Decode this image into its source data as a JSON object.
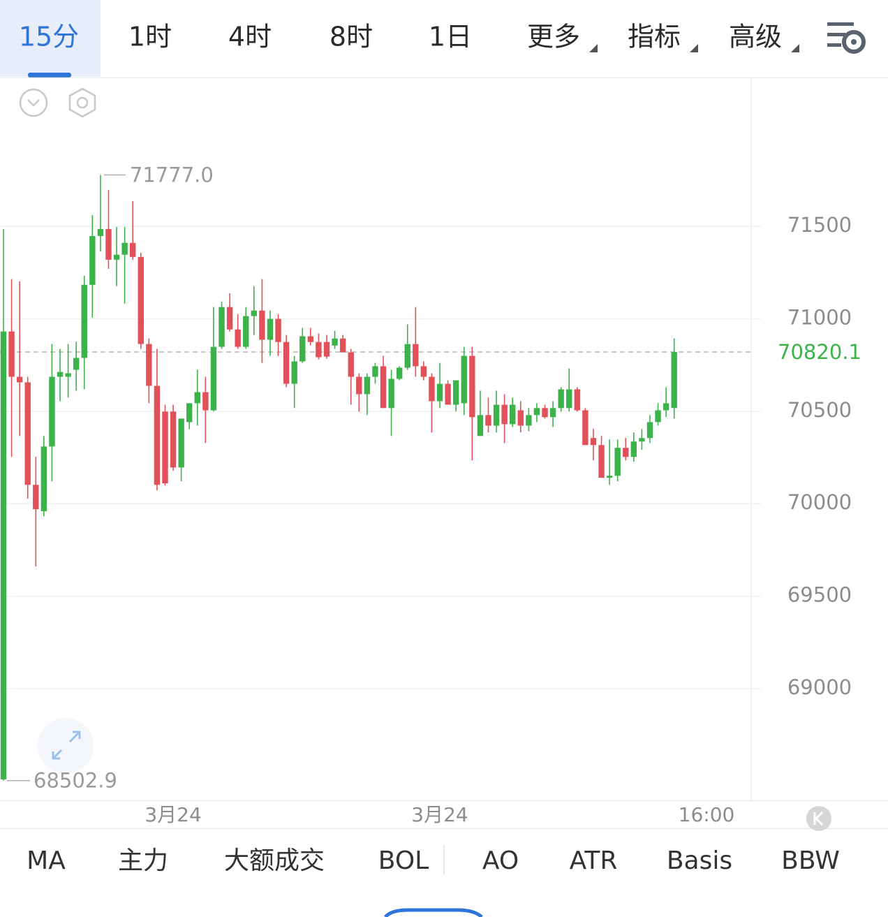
{
  "tabs": [
    "15分",
    "1时",
    "4时",
    "8时",
    "1日",
    "更多",
    "指标",
    "高级"
  ],
  "indicators": [
    "MA",
    "主力",
    "大额成交",
    "BOL",
    "AO",
    "ATR",
    "Basis",
    "BBW"
  ],
  "chart_data": {
    "type": "candlestick",
    "categories": [
      null,
      null,
      null,
      null,
      null,
      null,
      null,
      null,
      null,
      null,
      null,
      null,
      null,
      null,
      null,
      null,
      null,
      null,
      null,
      null,
      null,
      "3月24",
      null,
      null,
      null,
      null,
      null,
      null,
      null,
      null,
      null,
      null,
      null,
      null,
      null,
      null,
      null,
      null,
      null,
      null,
      null,
      null,
      null,
      null,
      null,
      null,
      null,
      null,
      null,
      null,
      null,
      null,
      null,
      null,
      "3月24",
      null,
      null,
      null,
      null,
      null,
      null,
      null,
      null,
      null,
      null,
      null,
      null,
      null,
      null,
      null,
      null,
      null,
      null,
      null,
      null,
      null,
      null,
      null,
      null,
      null,
      null,
      null,
      null,
      null,
      null,
      null,
      null,
      "16:00"
    ],
    "open": [
      68510,
      70931,
      70686,
      70656,
      70102,
      69959,
      70309,
      70686,
      70686,
      70724,
      70788,
      71183,
      71447,
      71485,
      71319,
      71346,
      71410,
      71334,
      70863,
      70637,
      70498,
      70498,
      70196,
      70441,
      70543,
      70603,
      70505,
      70848,
      71063,
      70942,
      70848,
      71014,
      71044,
      70886,
      70999,
      70874,
      70648,
      70769,
      70905,
      70874,
      70874,
      70855,
      70893,
      70818,
      70686,
      70592,
      70686,
      70743,
      70517,
      70675,
      70735,
      70863,
      70743,
      70686,
      70554,
      70648,
      70535,
      70543,
      70799,
      70366,
      70479,
      70422,
      70535,
      70430,
      70505,
      70422,
      70479,
      70517,
      70468,
      70517,
      70517,
      70618,
      70505,
      70355,
      70317,
      70140,
      70151,
      70302,
      70253,
      70336,
      70355,
      70441,
      70505,
      70517,
      null,
      null,
      null,
      null
    ],
    "high": [
      71485,
      71214,
      71202,
      70686,
      70253,
      70366,
      70863,
      70837,
      70863,
      70875,
      71232,
      71560,
      71777,
      71696,
      71496,
      71496,
      71636,
      71357,
      70893,
      70837,
      70535,
      70535,
      70460,
      70543,
      70724,
      70686,
      71063,
      71093,
      71138,
      71025,
      71063,
      71176,
      71214,
      71044,
      71025,
      70912,
      70799,
      70950,
      70950,
      70920,
      70912,
      70935,
      70912,
      70837,
      70705,
      70705,
      70761,
      70799,
      70724,
      70743,
      70969,
      71063,
      70769,
      70705,
      70761,
      70667,
      70667,
      70848,
      70848,
      70611,
      70573,
      70611,
      70592,
      70573,
      70554,
      70517,
      70543,
      70535,
      70554,
      70630,
      70731,
      70630,
      70517,
      70404,
      70366,
      70347,
      70347,
      70355,
      70385,
      70404,
      70479,
      70543,
      70630,
      70893,
      null,
      null,
      null,
      null
    ],
    "low": [
      68502.9,
      70253,
      70366,
      70027,
      69661,
      69932,
      70121,
      70554,
      70573,
      70611,
      70618,
      71006,
      71364,
      71270,
      71176,
      71082,
      71319,
      70837,
      70543,
      70072,
      70098,
      70178,
      70121,
      70403,
      70422,
      70328,
      70498,
      70837,
      70931,
      70837,
      70837,
      70912,
      70761,
      70799,
      70799,
      70630,
      70517,
      70761,
      70856,
      70780,
      70784,
      70837,
      70818,
      70535,
      70498,
      70479,
      70648,
      70517,
      70366,
      70667,
      70724,
      70686,
      70667,
      70385,
      70517,
      70535,
      70498,
      70479,
      70234,
      70366,
      70385,
      70385,
      70328,
      70415,
      70385,
      70392,
      70441,
      70460,
      70415,
      70498,
      70498,
      70498,
      70317,
      70234,
      70140,
      70102,
      70121,
      70234,
      70227,
      70291,
      70328,
      70422,
      70468,
      70460,
      null,
      null,
      null,
      null
    ],
    "close": [
      70931,
      70686,
      70656,
      70102,
      69970,
      70309,
      70686,
      70712,
      70705,
      70788,
      71183,
      71447,
      71485,
      71319,
      71346,
      71410,
      71334,
      70863,
      70637,
      70102,
      70110,
      70196,
      70460,
      70543,
      70603,
      70505,
      70848,
      71063,
      70942,
      70848,
      71014,
      71044,
      70886,
      70999,
      70874,
      70648,
      70769,
      70905,
      70874,
      70792,
      70795,
      70893,
      70818,
      70686,
      70592,
      70686,
      70743,
      70517,
      70675,
      70735,
      70863,
      70743,
      70686,
      70554,
      70648,
      70535,
      70667,
      70799,
      70468,
      70479,
      70422,
      70535,
      70430,
      70535,
      70422,
      70479,
      70517,
      70468,
      70517,
      70618,
      70618,
      70505,
      70317,
      70317,
      70140,
      70151,
      70302,
      70253,
      70336,
      70355,
      70441,
      70505,
      70543,
      70820.1,
      null,
      null,
      null,
      null
    ],
    "up_color": "#3bb34a",
    "down_color": "#e0515a",
    "ylim": [
      68400,
      72300
    ],
    "yticks": [
      69000,
      69500,
      70000,
      70500,
      71000,
      71500
    ],
    "grid": true,
    "annotations": {
      "high": {
        "value": 71777.0,
        "label": "71777.0"
      },
      "low": {
        "value": 68502.9,
        "label": "68502.9"
      },
      "last": {
        "value": 70820.1,
        "label": "70820.1"
      }
    }
  }
}
